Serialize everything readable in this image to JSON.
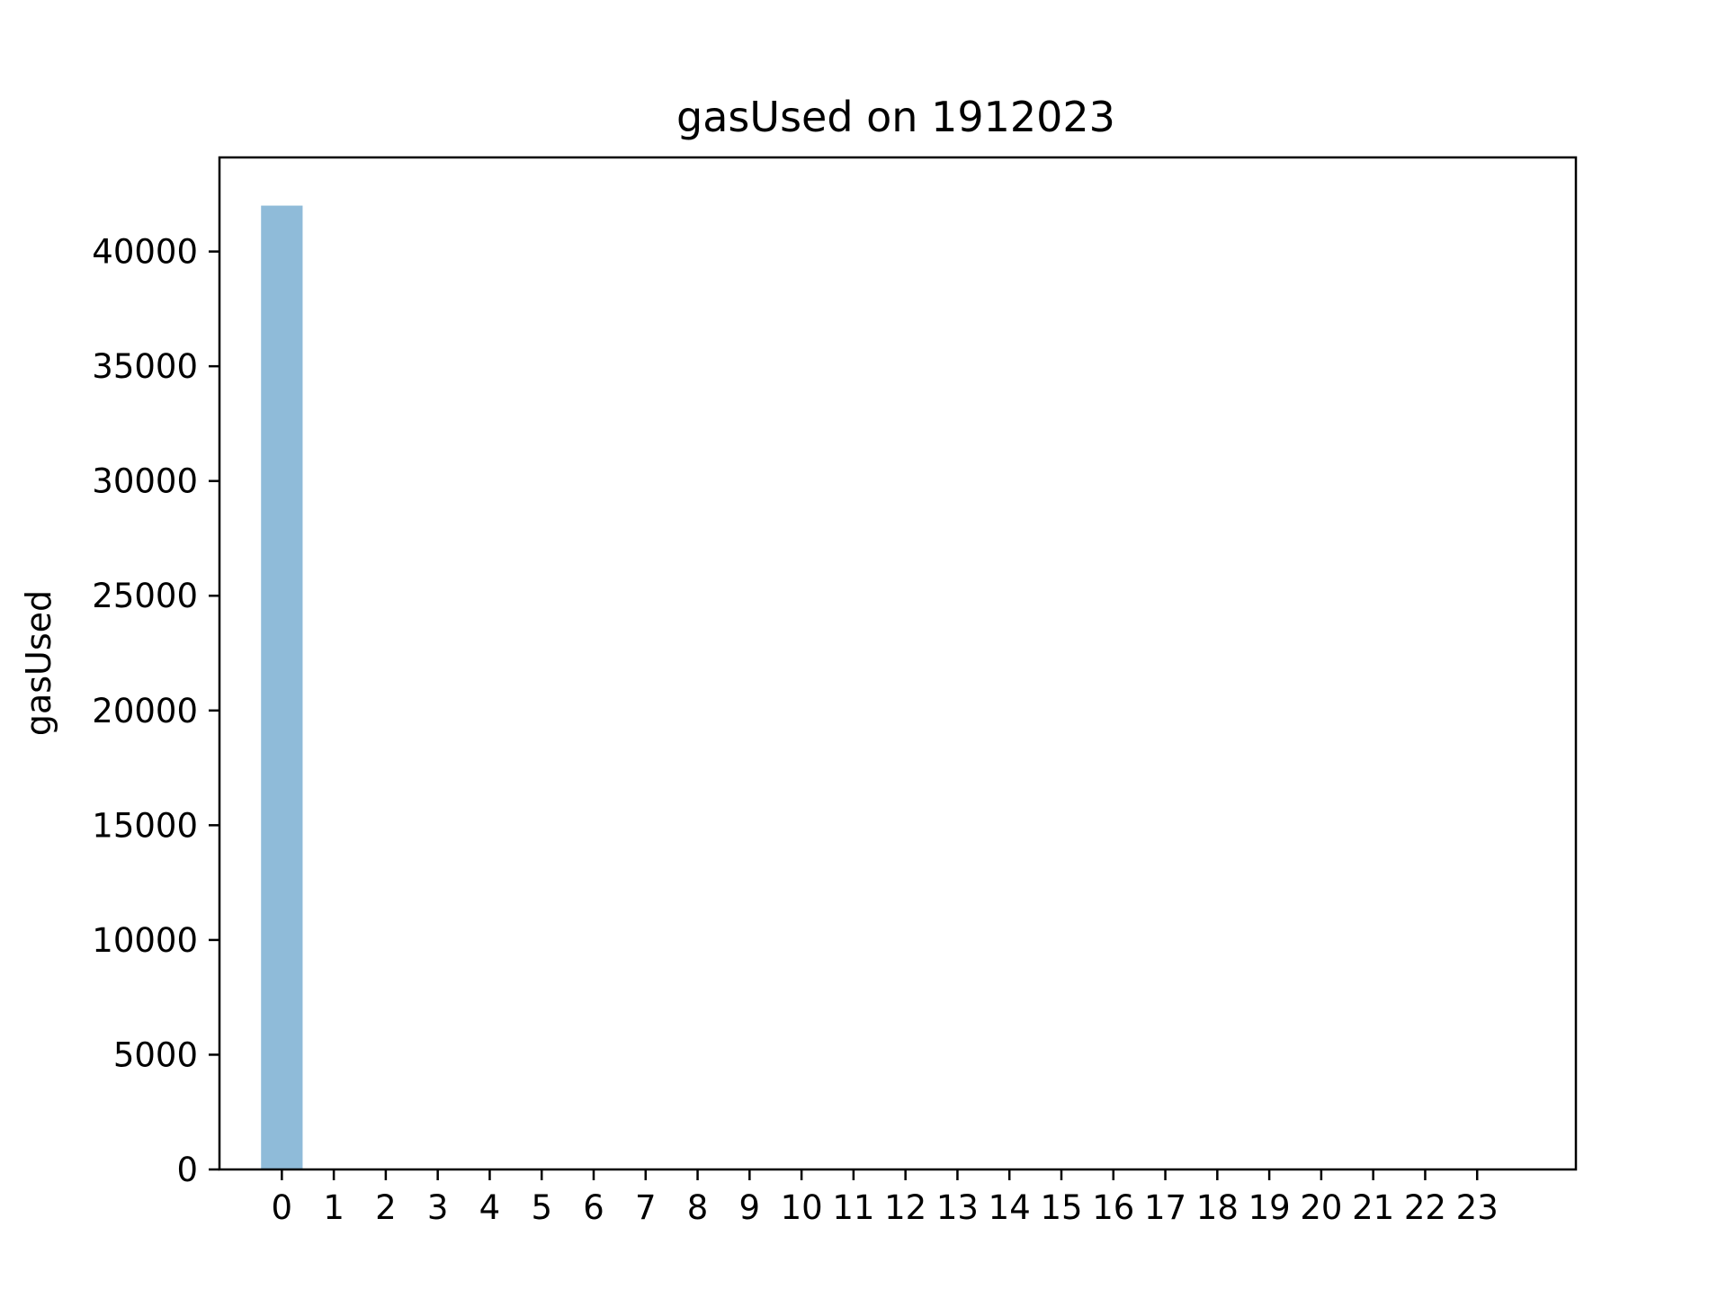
{
  "chart_data": {
    "type": "bar",
    "title": "gasUsed on 1912023",
    "xlabel": "",
    "ylabel": "gasUsed",
    "categories": [
      "0",
      "1",
      "2",
      "3",
      "4",
      "5",
      "6",
      "7",
      "8",
      "9",
      "10",
      "11",
      "12",
      "13",
      "14",
      "15",
      "16",
      "17",
      "18",
      "19",
      "20",
      "21",
      "22",
      "23"
    ],
    "values": [
      42000,
      0,
      0,
      0,
      0,
      0,
      0,
      0,
      0,
      0,
      0,
      0,
      0,
      0,
      0,
      0,
      0,
      0,
      0,
      0,
      0,
      0,
      0,
      0
    ],
    "yticks": [
      0,
      5000,
      10000,
      15000,
      20000,
      25000,
      30000,
      35000,
      40000
    ],
    "ylim": [
      0,
      44100
    ],
    "xlim": [
      -1.2,
      24.9
    ],
    "grid": false,
    "legend": "none",
    "bar_color": "#1f77b4",
    "bar_alpha": 0.5
  }
}
